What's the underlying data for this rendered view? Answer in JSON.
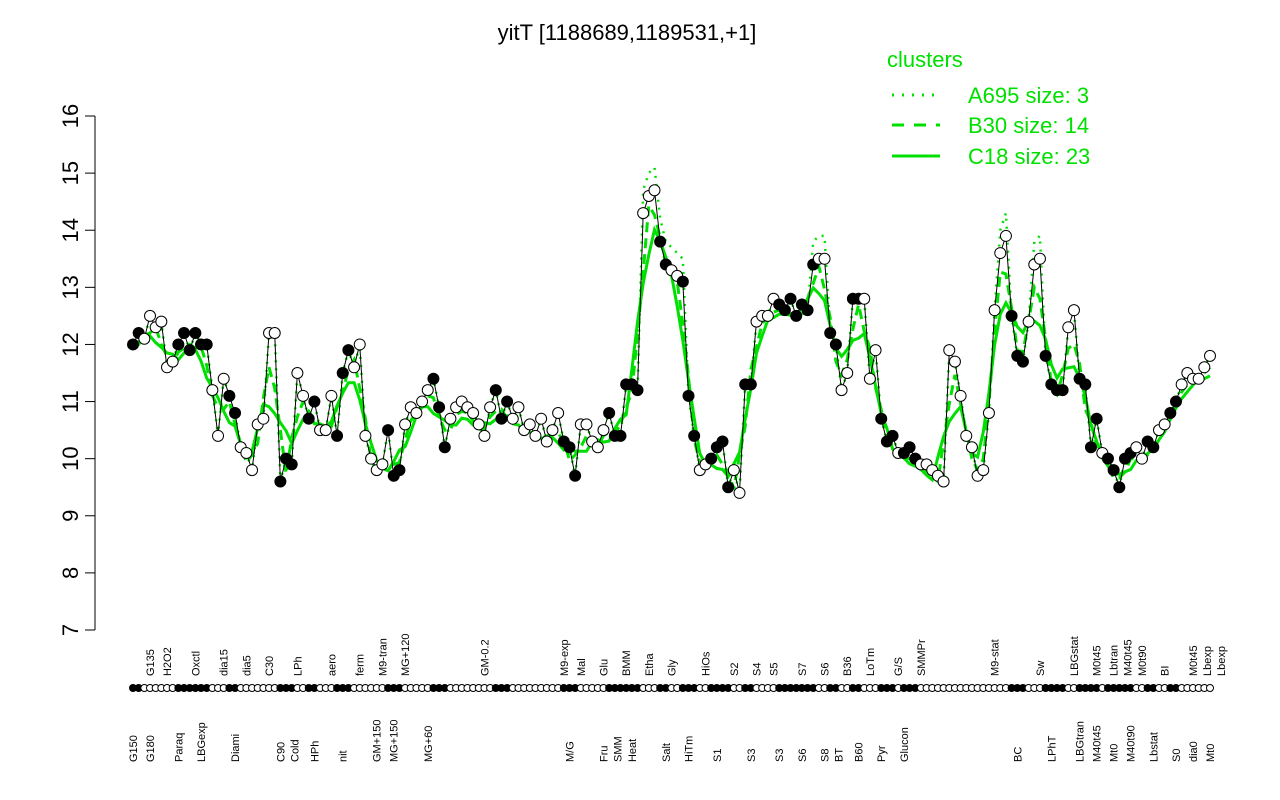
{
  "chart_data": {
    "type": "line",
    "title": "yitT [1188689,1189531,+1]",
    "xlabel": "",
    "ylabel": "",
    "ylim": [
      7,
      16
    ],
    "yticks": [
      7,
      8,
      9,
      10,
      11,
      12,
      13,
      14,
      15,
      16
    ],
    "legend": {
      "title": "clusters",
      "placement": "top-right",
      "entries": [
        {
          "label": "A695 size: 3",
          "style": "dotted"
        },
        {
          "label": "B30 size: 14",
          "style": "dashed"
        },
        {
          "label": "C18 size: 23",
          "style": "solid"
        }
      ]
    },
    "colors": {
      "cluster_line": "#00e000",
      "points": "#000000"
    },
    "points": [
      12.0,
      12.2,
      12.1,
      12.5,
      12.3,
      12.4,
      11.6,
      11.7,
      12.0,
      12.2,
      11.9,
      12.2,
      12.0,
      12.0,
      11.2,
      10.4,
      11.4,
      11.1,
      10.8,
      10.2,
      10.1,
      9.8,
      10.6,
      10.7,
      12.2,
      12.2,
      9.6,
      10.0,
      9.9,
      11.5,
      11.1,
      10.7,
      11.0,
      10.5,
      10.5,
      11.1,
      10.4,
      11.5,
      11.9,
      11.6,
      12.0,
      10.4,
      10.0,
      9.8,
      9.9,
      10.5,
      9.7,
      9.8,
      10.6,
      10.9,
      10.8,
      11.0,
      11.2,
      11.4,
      10.9,
      10.2,
      10.7,
      10.9,
      11.0,
      10.9,
      10.8,
      10.6,
      10.4,
      10.9,
      11.2,
      10.7,
      11.0,
      10.7,
      10.9,
      10.5,
      10.6,
      10.4,
      10.7,
      10.3,
      10.5,
      10.8,
      10.3,
      10.2,
      9.7,
      10.6,
      10.6,
      10.3,
      10.2,
      10.5,
      10.8,
      10.4,
      10.4,
      11.3,
      11.3,
      11.2,
      14.3,
      14.6,
      14.7,
      13.8,
      13.4,
      13.3,
      13.2,
      13.1,
      11.1,
      10.4,
      9.8,
      9.9,
      10.0,
      10.2,
      10.3,
      9.5,
      9.8,
      9.4,
      11.3,
      11.3,
      12.4,
      12.5,
      12.5,
      12.8,
      12.7,
      12.6,
      12.8,
      12.5,
      12.7,
      12.6,
      13.4,
      13.5,
      13.5,
      12.2,
      12.0,
      11.2,
      11.5,
      12.8,
      12.8,
      12.8,
      11.4,
      11.9,
      10.7,
      10.3,
      10.4,
      10.1,
      10.1,
      10.2,
      10.0,
      9.9,
      9.9,
      9.8,
      9.7,
      9.6,
      11.9,
      11.7,
      11.1,
      10.4,
      10.2,
      9.7,
      9.8,
      10.8,
      12.6,
      13.6,
      13.9,
      12.5,
      11.8,
      11.7,
      12.4,
      13.4,
      13.5,
      11.8,
      11.3,
      11.2,
      11.2,
      12.3,
      12.6,
      11.4,
      11.3,
      10.2,
      10.7,
      10.1,
      10.0,
      9.8,
      9.5,
      10.0,
      10.1,
      10.2,
      10.0,
      10.3,
      10.2,
      10.5,
      10.6,
      10.8,
      11.0,
      11.3,
      11.5,
      11.4,
      11.4,
      11.6,
      11.8
    ],
    "filled_ranges": [
      [
        0,
        1
      ],
      [
        8,
        13
      ],
      [
        17,
        18
      ],
      [
        26,
        28
      ],
      [
        31,
        32
      ],
      [
        36,
        38
      ],
      [
        45,
        47
      ],
      [
        53,
        55
      ],
      [
        64,
        66
      ],
      [
        76,
        78
      ],
      [
        84,
        89
      ],
      [
        93,
        94
      ],
      [
        97,
        99
      ],
      [
        102,
        105
      ],
      [
        108,
        109
      ],
      [
        114,
        120
      ],
      [
        123,
        124
      ],
      [
        127,
        128
      ],
      [
        132,
        134
      ],
      [
        136,
        138
      ],
      [
        155,
        157
      ],
      [
        161,
        164
      ],
      [
        167,
        170
      ],
      [
        172,
        176
      ],
      [
        179,
        180
      ],
      [
        183,
        184
      ]
    ],
    "top_labels": [
      {
        "text": "G135",
        "at": 3
      },
      {
        "text": "H2O2",
        "at": 6
      },
      {
        "text": "Oxctl",
        "at": 11
      },
      {
        "text": "dia15",
        "at": 16
      },
      {
        "text": "dia5",
        "at": 20
      },
      {
        "text": "C30",
        "at": 24
      },
      {
        "text": "LPh",
        "at": 29
      },
      {
        "text": "aero",
        "at": 35
      },
      {
        "text": "ferm",
        "at": 40
      },
      {
        "text": "M9-tran",
        "at": 44
      },
      {
        "text": "MG+120",
        "at": 48
      },
      {
        "text": "GM-0.2",
        "at": 62
      },
      {
        "text": "M9-exp",
        "at": 76
      },
      {
        "text": "Mal",
        "at": 79
      },
      {
        "text": "Glu",
        "at": 83
      },
      {
        "text": "BMM",
        "at": 87
      },
      {
        "text": "Etha",
        "at": 91
      },
      {
        "text": "Gly",
        "at": 95
      },
      {
        "text": "HiOs",
        "at": 101
      },
      {
        "text": "S2",
        "at": 106
      },
      {
        "text": "S4",
        "at": 110
      },
      {
        "text": "S5",
        "at": 113
      },
      {
        "text": "S7",
        "at": 118
      },
      {
        "text": "S6",
        "at": 122
      },
      {
        "text": "B36",
        "at": 126
      },
      {
        "text": "LoTm",
        "at": 130
      },
      {
        "text": "G/S",
        "at": 135
      },
      {
        "text": "SMMPr",
        "at": 139
      },
      {
        "text": "M9-stat",
        "at": 152
      },
      {
        "text": "Sw",
        "at": 160
      },
      {
        "text": "LBGstat",
        "at": 166
      },
      {
        "text": "M0t45",
        "at": 170
      },
      {
        "text": "Lbtran",
        "at": 173
      },
      {
        "text": "M40t45",
        "at": 175
      },
      {
        "text": "M0t90",
        "at": 178
      },
      {
        "text": "BI",
        "at": 182
      },
      {
        "text": "M0t45",
        "at": 187
      },
      {
        "text": "Lbexp",
        "at": 189
      },
      {
        "text": "Lbexp",
        "at": 190
      }
    ],
    "bottom_labels": [
      {
        "text": "G150",
        "at": 0
      },
      {
        "text": "G180",
        "at": 3
      },
      {
        "text": "Paraq",
        "at": 8
      },
      {
        "text": "LBGexp",
        "at": 12
      },
      {
        "text": "Diami",
        "at": 18
      },
      {
        "text": "C90",
        "at": 26
      },
      {
        "text": "Cold",
        "at": 28
      },
      {
        "text": "HPh",
        "at": 32
      },
      {
        "text": "nit",
        "at": 37
      },
      {
        "text": "GM+150",
        "at": 43
      },
      {
        "text": "MG+150",
        "at": 46
      },
      {
        "text": "MG+60",
        "at": 52
      },
      {
        "text": "M/G",
        "at": 77
      },
      {
        "text": "Fru",
        "at": 83
      },
      {
        "text": "SMM",
        "at": 85
      },
      {
        "text": "Heat",
        "at": 88
      },
      {
        "text": "Salt",
        "at": 94
      },
      {
        "text": "HiTm",
        "at": 98
      },
      {
        "text": "S1",
        "at": 103
      },
      {
        "text": "S3",
        "at": 109
      },
      {
        "text": "S3",
        "at": 114
      },
      {
        "text": "S6",
        "at": 118
      },
      {
        "text": "S8",
        "at": 122
      },
      {
        "text": "BT",
        "at": 124
      },
      {
        "text": "B60",
        "at": 128
      },
      {
        "text": "Pyr",
        "at": 132
      },
      {
        "text": "Glucon",
        "at": 136
      },
      {
        "text": "BC",
        "at": 156
      },
      {
        "text": "LPhT",
        "at": 162
      },
      {
        "text": "LBGtran",
        "at": 167
      },
      {
        "text": "M40t45",
        "at": 170
      },
      {
        "text": "Mt0",
        "at": 173
      },
      {
        "text": "M40t90",
        "at": 176
      },
      {
        "text": "Lbstat",
        "at": 180
      },
      {
        "text": "S0",
        "at": 184
      },
      {
        "text": "dia0",
        "at": 187
      },
      {
        "text": "Mt0",
        "at": 190
      }
    ]
  }
}
